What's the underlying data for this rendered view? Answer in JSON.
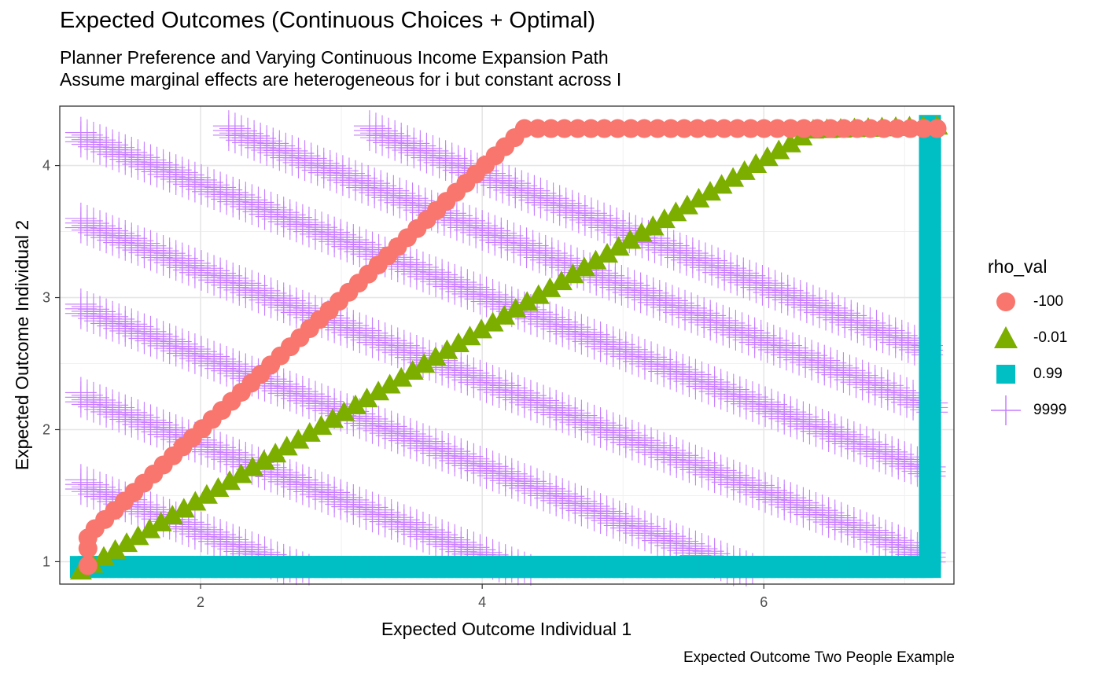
{
  "chart_data": {
    "type": "scatter",
    "title": "Expected Outcomes (Continuous Choices + Optimal)",
    "subtitle": [
      "Planner Preference and Varying Continuous Income Expansion Path",
      "Assume marginal effects are heterogeneous for i but constant across I"
    ],
    "caption": "Expected Outcome Two People Example",
    "xlabel": "Expected Outcome Individual 1",
    "ylabel": "Expected Outcome Individual 2",
    "xlim": [
      1.0,
      7.35
    ],
    "ylim": [
      0.83,
      4.45
    ],
    "xticks": [
      2,
      4,
      6
    ],
    "yticks": [
      1,
      2,
      3,
      4
    ],
    "grid": true,
    "legend": {
      "title": "rho_val",
      "position": "right",
      "entries": [
        {
          "label": "-100",
          "shape": "circle",
          "color": "#F8766D"
        },
        {
          "label": "-0.01",
          "shape": "triangle",
          "color": "#7CAE00"
        },
        {
          "label": "0.99",
          "shape": "square",
          "color": "#00BFC4"
        },
        {
          "label": "9999",
          "shape": "plus",
          "color": "#C77CFF"
        }
      ]
    },
    "series": [
      {
        "name": "-100",
        "shape": "circle",
        "color": "#F8766D",
        "points": [
          [
            1.2,
            0.97
          ],
          [
            1.2,
            1.1
          ],
          [
            1.2,
            1.18
          ],
          [
            1.25,
            1.25
          ],
          [
            4.3,
            4.28
          ],
          [
            7.23,
            4.28
          ]
        ]
      },
      {
        "name": "-0.01",
        "shape": "triangle",
        "color": "#7CAE00",
        "points": [
          [
            1.15,
            0.93
          ],
          [
            6.35,
            4.27
          ],
          [
            7.23,
            4.3
          ]
        ]
      },
      {
        "name": "0.99",
        "shape": "square",
        "color": "#00BFC4",
        "points": [
          [
            1.15,
            0.96
          ],
          [
            7.18,
            0.96
          ],
          [
            7.18,
            4.3
          ]
        ]
      },
      {
        "name": "9999",
        "shape": "plus",
        "color": "#C77CFF",
        "points": [
          [
            1.15,
            4.25
          ],
          [
            2.2,
            4.3
          ],
          [
            3.2,
            4.3
          ],
          [
            1.15,
            3.6
          ],
          [
            1.15,
            2.95
          ],
          [
            1.15,
            2.28
          ],
          [
            1.15,
            1.62
          ]
        ],
        "slope": -0.42,
        "x_end": 7.2
      }
    ]
  }
}
